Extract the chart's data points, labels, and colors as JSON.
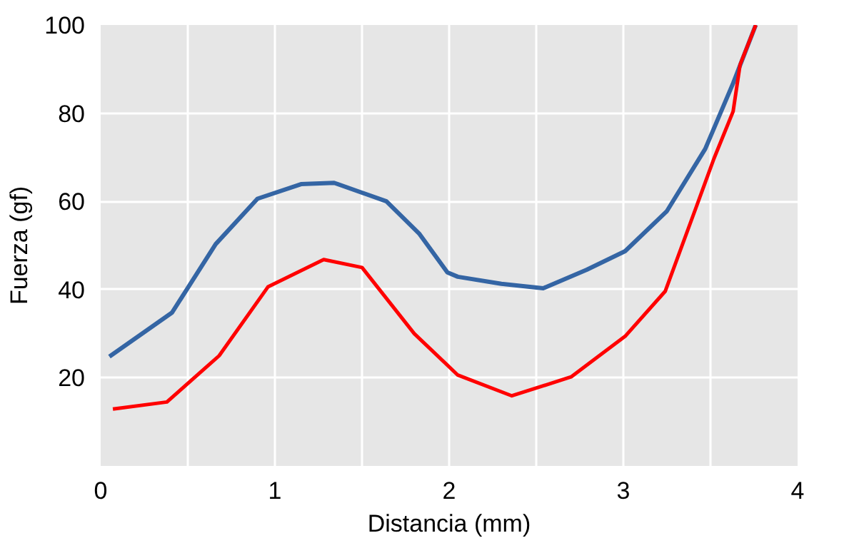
{
  "chart_data": {
    "type": "line",
    "xlabel": "Distancia (mm)",
    "ylabel": "Fuerza (gf)",
    "xlim": [
      0,
      4
    ],
    "ylim": [
      0,
      100
    ],
    "xticks": [
      0,
      {
        "value": 0.5,
        "label": null
      },
      1,
      {
        "value": 1.5,
        "label": null
      },
      2,
      {
        "value": 2.5,
        "label": null
      },
      3,
      {
        "value": 3.5,
        "label": null
      },
      4
    ],
    "yticks": [
      20,
      40,
      60,
      80,
      100
    ],
    "grid": true,
    "marker": "none",
    "line_style": "solid",
    "series": [
      {
        "color": "#3465a4",
        "x": [
          0.05,
          0.41,
          0.66,
          0.9,
          1.15,
          1.34,
          1.64,
          1.83,
          1.99,
          2.05,
          2.3,
          2.54,
          2.79,
          3.01,
          3.25,
          3.47,
          3.63,
          3.76
        ],
        "values": [
          24.8,
          34.8,
          50.3,
          60.6,
          63.9,
          64.2,
          60,
          52.6,
          43.9,
          42.9,
          41.3,
          40.3,
          44.5,
          48.7,
          57.8,
          71.9,
          86.8,
          100
        ]
      },
      {
        "color": "#ff0000",
        "x": [
          0.07,
          0.38,
          0.68,
          0.96,
          1.28,
          1.5,
          1.8,
          2.05,
          2.36,
          2.7,
          3.01,
          3.24,
          3.42,
          3.52,
          3.63,
          3.67,
          3.76
        ],
        "values": [
          12.9,
          14.5,
          25,
          40.6,
          46.8,
          45,
          30,
          20.6,
          15.9,
          20.2,
          29.4,
          39.6,
          58.9,
          69.7,
          80.4,
          91,
          100
        ]
      }
    ]
  }
}
